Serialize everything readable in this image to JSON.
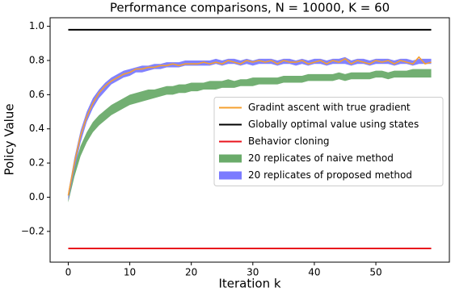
{
  "chart_data": {
    "type": "line",
    "title": "Performance comparisons, N = 10000, K = 60",
    "x_label": "Iteration k",
    "y_label": "Policy Value",
    "x": [
      0,
      1,
      2,
      3,
      4,
      5,
      6,
      7,
      8,
      9,
      10,
      11,
      12,
      13,
      14,
      15,
      16,
      17,
      18,
      19,
      20,
      21,
      22,
      23,
      24,
      25,
      26,
      27,
      28,
      29,
      30,
      31,
      32,
      33,
      34,
      35,
      36,
      37,
      38,
      39,
      40,
      41,
      42,
      43,
      44,
      45,
      46,
      47,
      48,
      49,
      50,
      51,
      52,
      53,
      54,
      55,
      56,
      57,
      58,
      59
    ],
    "xlim": [
      -2.95,
      61.95
    ],
    "ylim": [
      -0.38,
      1.05
    ],
    "xticks": [
      0,
      10,
      20,
      30,
      40,
      50
    ],
    "yticks": [
      {
        "value": -0.2,
        "label": "−0.2"
      },
      {
        "value": 0.0,
        "label": "0.0"
      },
      0.2,
      0.4,
      0.6,
      0.8,
      {
        "value": 1.0,
        "label": "1.0"
      }
    ],
    "legend": "center right",
    "series": [
      {
        "name": "Gradint ascent with true gradient",
        "kind": "line",
        "color": "#f5a030",
        "values": [
          0.01,
          0.2,
          0.36,
          0.47,
          0.55,
          0.61,
          0.65,
          0.68,
          0.7,
          0.72,
          0.73,
          0.75,
          0.75,
          0.76,
          0.76,
          0.77,
          0.77,
          0.78,
          0.77,
          0.78,
          0.78,
          0.78,
          0.79,
          0.78,
          0.79,
          0.78,
          0.8,
          0.79,
          0.78,
          0.8,
          0.79,
          0.8,
          0.79,
          0.8,
          0.78,
          0.8,
          0.79,
          0.79,
          0.8,
          0.78,
          0.79,
          0.8,
          0.78,
          0.8,
          0.79,
          0.81,
          0.78,
          0.8,
          0.79,
          0.78,
          0.8,
          0.79,
          0.8,
          0.78,
          0.8,
          0.79,
          0.78,
          0.82,
          0.78,
          0.79
        ]
      },
      {
        "name": "Globally optimal value using states",
        "kind": "line",
        "color": "#000000",
        "x": [
          0,
          59
        ],
        "values": [
          0.98,
          0.98
        ]
      },
      {
        "name": "Behavior cloning",
        "kind": "line",
        "color": "#e8141c",
        "x": [
          0,
          59
        ],
        "values": [
          -0.3,
          -0.3
        ]
      },
      {
        "name": "20 replicates of naive method",
        "kind": "band",
        "color": "#6aab6a",
        "upper": [
          0.02,
          0.18,
          0.3,
          0.38,
          0.44,
          0.48,
          0.51,
          0.54,
          0.56,
          0.58,
          0.6,
          0.61,
          0.62,
          0.63,
          0.63,
          0.64,
          0.65,
          0.65,
          0.66,
          0.66,
          0.67,
          0.67,
          0.67,
          0.68,
          0.68,
          0.68,
          0.69,
          0.68,
          0.69,
          0.69,
          0.7,
          0.7,
          0.7,
          0.7,
          0.7,
          0.71,
          0.71,
          0.71,
          0.71,
          0.72,
          0.72,
          0.72,
          0.72,
          0.72,
          0.73,
          0.72,
          0.73,
          0.73,
          0.73,
          0.73,
          0.74,
          0.74,
          0.73,
          0.74,
          0.74,
          0.74,
          0.75,
          0.75,
          0.75,
          0.75
        ],
        "lower": [
          -0.03,
          0.12,
          0.24,
          0.32,
          0.38,
          0.42,
          0.45,
          0.48,
          0.5,
          0.52,
          0.54,
          0.55,
          0.56,
          0.57,
          0.58,
          0.59,
          0.6,
          0.6,
          0.61,
          0.61,
          0.62,
          0.62,
          0.63,
          0.63,
          0.63,
          0.64,
          0.64,
          0.64,
          0.65,
          0.65,
          0.65,
          0.66,
          0.66,
          0.66,
          0.66,
          0.67,
          0.67,
          0.67,
          0.67,
          0.68,
          0.68,
          0.68,
          0.68,
          0.68,
          0.69,
          0.68,
          0.69,
          0.69,
          0.69,
          0.69,
          0.7,
          0.7,
          0.69,
          0.7,
          0.7,
          0.7,
          0.7,
          0.7,
          0.7,
          0.7
        ]
      },
      {
        "name": "20 replicates of proposed method",
        "kind": "band",
        "color": "#7b7bff",
        "upper": [
          0.03,
          0.23,
          0.39,
          0.5,
          0.58,
          0.63,
          0.67,
          0.7,
          0.72,
          0.74,
          0.75,
          0.76,
          0.77,
          0.77,
          0.78,
          0.78,
          0.79,
          0.79,
          0.79,
          0.8,
          0.8,
          0.8,
          0.8,
          0.8,
          0.81,
          0.8,
          0.81,
          0.81,
          0.8,
          0.81,
          0.8,
          0.81,
          0.81,
          0.81,
          0.8,
          0.81,
          0.81,
          0.8,
          0.81,
          0.8,
          0.81,
          0.81,
          0.8,
          0.81,
          0.81,
          0.82,
          0.8,
          0.81,
          0.81,
          0.8,
          0.81,
          0.81,
          0.81,
          0.8,
          0.81,
          0.81,
          0.8,
          0.81,
          0.81,
          0.81
        ],
        "lower": [
          -0.02,
          0.16,
          0.32,
          0.44,
          0.52,
          0.58,
          0.62,
          0.66,
          0.68,
          0.7,
          0.71,
          0.73,
          0.73,
          0.74,
          0.75,
          0.75,
          0.76,
          0.76,
          0.76,
          0.77,
          0.77,
          0.77,
          0.77,
          0.77,
          0.78,
          0.77,
          0.78,
          0.78,
          0.77,
          0.78,
          0.77,
          0.78,
          0.78,
          0.78,
          0.77,
          0.78,
          0.78,
          0.77,
          0.78,
          0.77,
          0.78,
          0.78,
          0.77,
          0.78,
          0.78,
          0.78,
          0.77,
          0.78,
          0.78,
          0.77,
          0.78,
          0.78,
          0.78,
          0.77,
          0.78,
          0.78,
          0.77,
          0.78,
          0.78,
          0.78
        ]
      }
    ]
  }
}
